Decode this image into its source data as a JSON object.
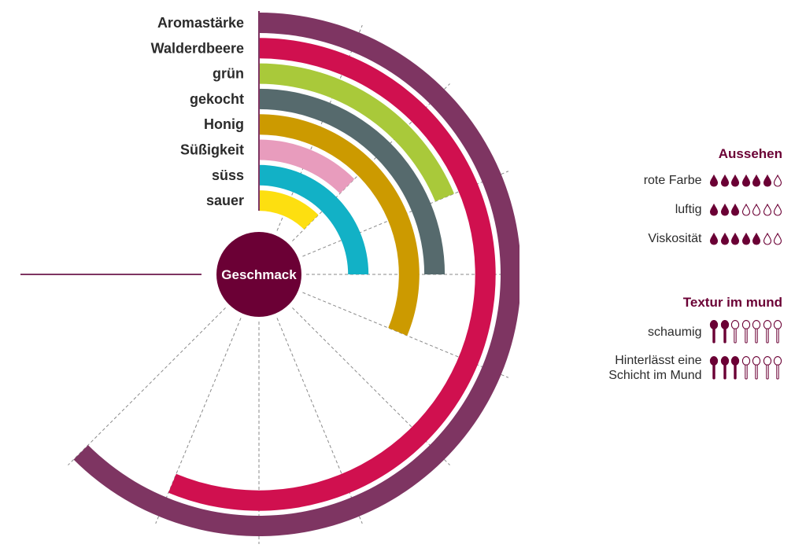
{
  "chart_data": {
    "type": "radial-bar",
    "center_label": "Geschmack",
    "series": [
      {
        "label": "Aromastärke",
        "value": 10,
        "color": "#7e3562"
      },
      {
        "label": "Walderdbeere",
        "value": 9,
        "color": "#d0104f"
      },
      {
        "label": "grün",
        "value": 3,
        "color": "#a9c93a"
      },
      {
        "label": "gekocht",
        "value": 4,
        "color": "#566a6d"
      },
      {
        "label": "Honig",
        "value": 5,
        "color": "#cc9a00"
      },
      {
        "label": "Süßigkeit",
        "value": 2,
        "color": "#e89cbd"
      },
      {
        "label": "süss",
        "value": 4,
        "color": "#12b1c6"
      },
      {
        "label": "sauer",
        "value": 2,
        "color": "#fddf10"
      }
    ],
    "scale_max": 10
  },
  "appearance": {
    "title": "Aussehen",
    "icon": "drop-icon",
    "max": 7,
    "color": "#6b0035",
    "items": [
      {
        "label": "rote Farbe",
        "value": 6
      },
      {
        "label": "luftig",
        "value": 3
      },
      {
        "label": "Viskosität",
        "value": 5
      }
    ]
  },
  "texture": {
    "title": "Textur im mund",
    "icon": "spoon-icon",
    "max": 7,
    "color": "#6b0035",
    "items": [
      {
        "label": "schaumig",
        "value": 2
      },
      {
        "label": "Hinterlässt eine Schicht im Mund",
        "lines": [
          "Hinterlässt eine",
          "Schicht im Mund"
        ],
        "value": 3
      }
    ]
  }
}
